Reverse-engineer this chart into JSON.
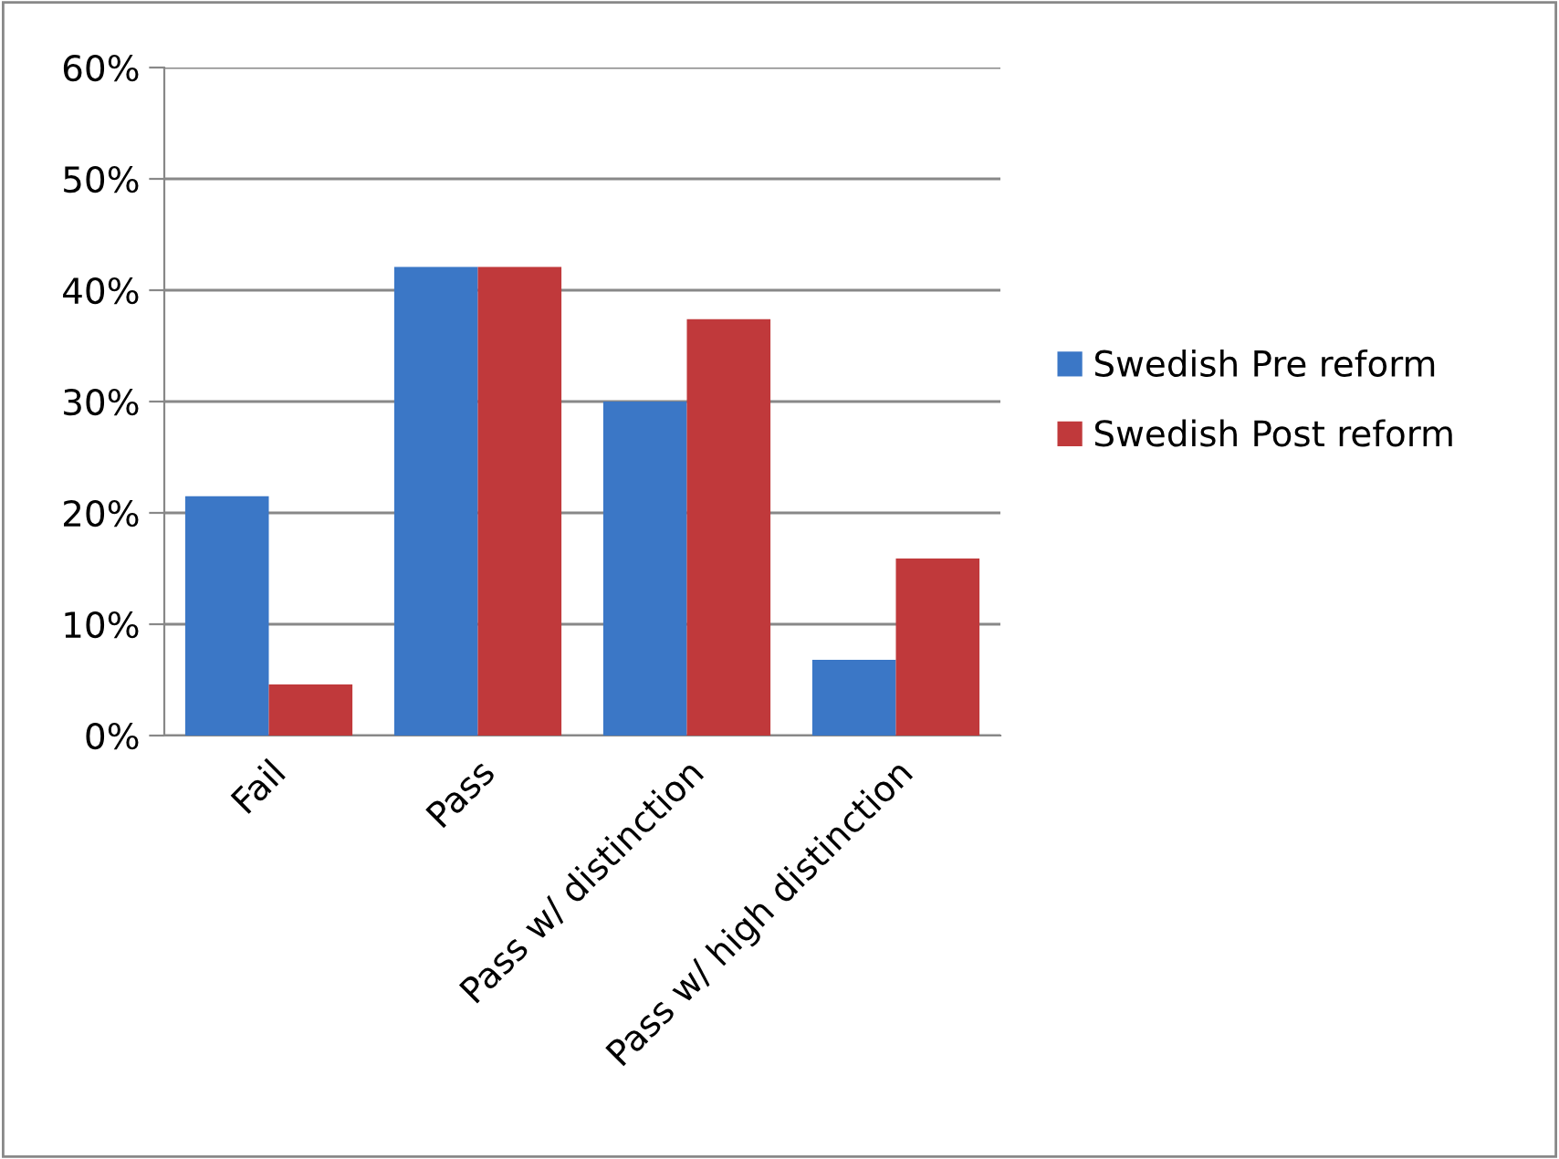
{
  "chart_data": {
    "type": "bar",
    "categories": [
      "Fail",
      "Pass",
      "Pass w/ distinction",
      "Pass w/ high distinction"
    ],
    "series": [
      {
        "name": "Swedish Pre reform",
        "color": "#3b77c6",
        "values": [
          21.5,
          42.1,
          30,
          6.8
        ]
      },
      {
        "name": "Swedish Post reform",
        "color": "#c0393b",
        "values": [
          4.6,
          42.1,
          37.4,
          15.9
        ]
      }
    ],
    "ylim": [
      0,
      60
    ],
    "yticks": [
      {
        "value": 0,
        "label": "0%"
      },
      {
        "value": 10,
        "label": "10%"
      },
      {
        "value": 20,
        "label": "20%"
      },
      {
        "value": 30,
        "label": "30%"
      },
      {
        "value": 40,
        "label": "40%"
      },
      {
        "value": 50,
        "label": "50%"
      },
      {
        "value": 60,
        "label": "60%"
      }
    ],
    "grid": "y",
    "legend": "right"
  }
}
